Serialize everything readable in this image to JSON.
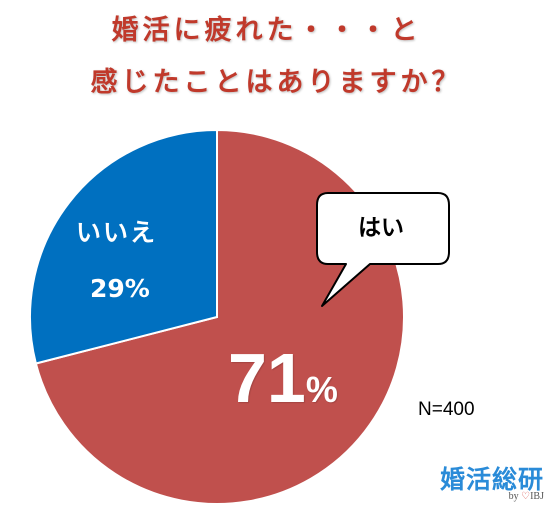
{
  "title": {
    "line1": "婚活に疲れた・・・と",
    "line2": "感じたことはありますか？"
  },
  "chart_data": {
    "type": "pie",
    "slices": [
      {
        "label": "はい",
        "value": 71,
        "display": "71%",
        "color": "#c0504d"
      },
      {
        "label": "いいえ",
        "value": 29,
        "display": "29%",
        "color": "#0070c0"
      }
    ]
  },
  "callout": {
    "text": "はい"
  },
  "sample_size": "N=400",
  "logo": {
    "text": "婚活総研",
    "byline": "by",
    "brand": "IBJ",
    "heart": "♡"
  }
}
